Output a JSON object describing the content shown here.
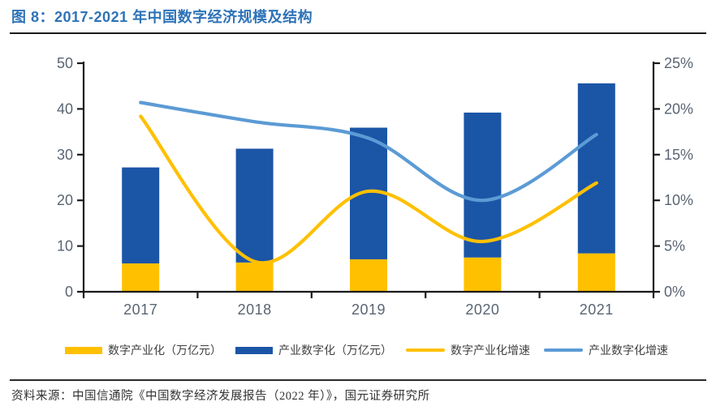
{
  "header": {
    "title": "图 8：2017-2021 年中国数字经济规模及结构"
  },
  "colors": {
    "bar_yellow": "#FFC000",
    "bar_blue": "#1B55A6",
    "line_yellow": "#FFC000",
    "line_blue": "#5B9BD5",
    "title_blue": "#2E73B8",
    "axis_line": "#1a1a1a",
    "tick_label": "#5A6573",
    "body_text": "#404040"
  },
  "chart_data": {
    "type": "combo-stacked-bar-line",
    "categories": [
      "2017",
      "2018",
      "2019",
      "2020",
      "2021"
    ],
    "bar_series": [
      {
        "name": "数字产业化（万亿元）",
        "axis": "left",
        "color_key": "bar_yellow",
        "values": [
          6.2,
          6.4,
          7.1,
          7.5,
          8.4
        ]
      },
      {
        "name": "产业数字化（万亿元）",
        "axis": "left",
        "color_key": "bar_blue",
        "values": [
          21.0,
          24.9,
          28.8,
          31.7,
          37.2
        ]
      }
    ],
    "line_series": [
      {
        "name": "数字产业化增速",
        "axis": "right",
        "color_key": "line_yellow",
        "values": [
          19.2,
          3.3,
          11.0,
          5.5,
          11.9
        ]
      },
      {
        "name": "产业数字化增速",
        "axis": "right",
        "color_key": "line_blue",
        "values": [
          20.7,
          18.6,
          16.8,
          10.0,
          17.2
        ]
      }
    ],
    "left_axis": {
      "min": 0,
      "max": 50,
      "step": 10,
      "labels": [
        "0",
        "10",
        "20",
        "30",
        "40",
        "50"
      ]
    },
    "right_axis": {
      "min": 0,
      "max": 25,
      "step": 5,
      "labels": [
        "0%",
        "5%",
        "10%",
        "15%",
        "20%",
        "25%"
      ],
      "unit": "%"
    },
    "stacked_bars": true,
    "smooth_lines": true,
    "grid": false,
    "legend_position": "bottom"
  },
  "legend": {
    "items": [
      {
        "label": "数字产业化（万亿元）",
        "swatch": "bar",
        "color_key": "bar_yellow"
      },
      {
        "label": "产业数字化（万亿元）",
        "swatch": "bar",
        "color_key": "bar_blue"
      },
      {
        "label": "数字产业化增速",
        "swatch": "line",
        "color_key": "line_yellow"
      },
      {
        "label": "产业数字化增速",
        "swatch": "line",
        "color_key": "line_blue"
      }
    ]
  },
  "footer": {
    "source": "资料来源：中国信通院《中国数字经济发展报告（2022 年）》，国元证券研究所"
  }
}
